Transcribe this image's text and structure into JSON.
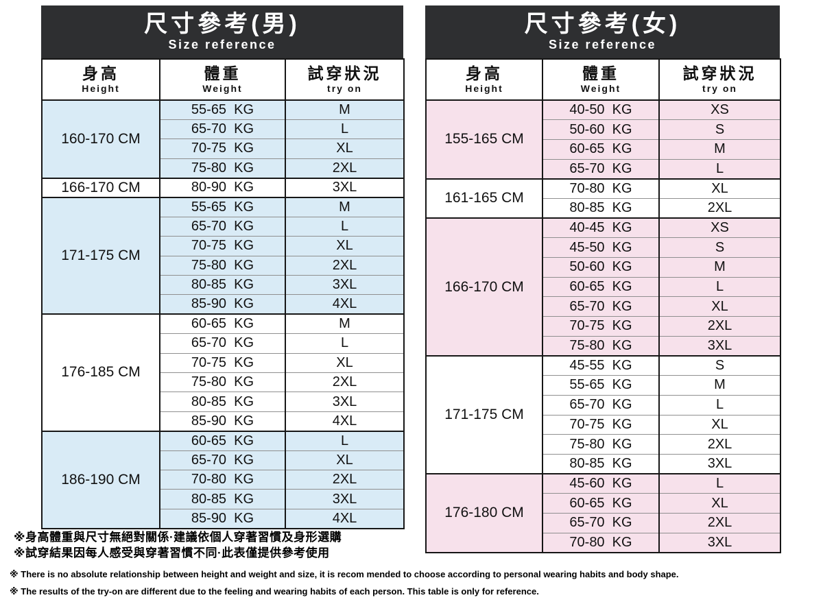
{
  "colors": {
    "title_bar_bg": "#2e2f31",
    "title_text": "#ffffff",
    "men_group_tint": "#d9ebf6",
    "women_group_tint": "#f7e1eb",
    "border_dark": "#161616",
    "inner_line": "#8f8f8f",
    "body_text": "#111111"
  },
  "tables": [
    {
      "id": "men",
      "title": "尺寸參考(男)",
      "subtitle": "Size reference",
      "tint": "#d9ebf6",
      "columns": [
        {
          "zh": "身高",
          "en": "Height"
        },
        {
          "zh": "體重",
          "en": "Weight"
        },
        {
          "zh": "試穿狀況",
          "en": "try on"
        }
      ],
      "groups": [
        {
          "height": "160-170 CM",
          "tinted": true,
          "rows": [
            [
              "55-65  KG",
              "M"
            ],
            [
              "65-70  KG",
              "L"
            ],
            [
              "70-75  KG",
              "XL"
            ],
            [
              "75-80  KG",
              "2XL"
            ]
          ]
        },
        {
          "height": "166-170 CM",
          "tinted": false,
          "rows": [
            [
              "80-90  KG",
              "3XL"
            ]
          ]
        },
        {
          "height": "171-175 CM",
          "tinted": true,
          "rows": [
            [
              "55-65  KG",
              "M"
            ],
            [
              "65-70  KG",
              "L"
            ],
            [
              "70-75  KG",
              "XL"
            ],
            [
              "75-80  KG",
              "2XL"
            ],
            [
              "80-85  KG",
              "3XL"
            ],
            [
              "85-90  KG",
              "4XL"
            ]
          ]
        },
        {
          "height": "176-185 CM",
          "tinted": false,
          "rows": [
            [
              "60-65  KG",
              "M"
            ],
            [
              "65-70  KG",
              "L"
            ],
            [
              "70-75  KG",
              "XL"
            ],
            [
              "75-80  KG",
              "2XL"
            ],
            [
              "80-85  KG",
              "3XL"
            ],
            [
              "85-90  KG",
              "4XL"
            ]
          ]
        },
        {
          "height": "186-190 CM",
          "tinted": true,
          "rows": [
            [
              "60-65  KG",
              "L"
            ],
            [
              "65-70  KG",
              "XL"
            ],
            [
              "70-80  KG",
              "2XL"
            ],
            [
              "80-85  KG",
              "3XL"
            ],
            [
              "85-90  KG",
              "4XL"
            ]
          ]
        }
      ]
    },
    {
      "id": "women",
      "title": "尺寸參考(女)",
      "subtitle": "Size reference",
      "tint": "#f7e1eb",
      "columns": [
        {
          "zh": "身高",
          "en": "Height"
        },
        {
          "zh": "體重",
          "en": "Weight"
        },
        {
          "zh": "試穿狀況",
          "en": "try on"
        }
      ],
      "groups": [
        {
          "height": "155-165 CM",
          "tinted": true,
          "rows": [
            [
              "40-50  KG",
              "XS"
            ],
            [
              "50-60  KG",
              "S"
            ],
            [
              "60-65  KG",
              "M"
            ],
            [
              "65-70  KG",
              "L"
            ]
          ]
        },
        {
          "height": "161-165 CM",
          "tinted": false,
          "rows": [
            [
              "70-80  KG",
              "XL"
            ],
            [
              "80-85  KG",
              "2XL"
            ]
          ]
        },
        {
          "height": "166-170 CM",
          "tinted": true,
          "rows": [
            [
              "40-45  KG",
              "XS"
            ],
            [
              "45-50  KG",
              "S"
            ],
            [
              "50-60  KG",
              "M"
            ],
            [
              "60-65  KG",
              "L"
            ],
            [
              "65-70  KG",
              "XL"
            ],
            [
              "70-75  KG",
              "2XL"
            ],
            [
              "75-80  KG",
              "3XL"
            ]
          ]
        },
        {
          "height": "171-175 CM",
          "tinted": false,
          "rows": [
            [
              "45-55  KG",
              "S"
            ],
            [
              "55-65  KG",
              "M"
            ],
            [
              "65-70  KG",
              "L"
            ],
            [
              "70-75  KG",
              "XL"
            ],
            [
              "75-80  KG",
              "2XL"
            ],
            [
              "80-85  KG",
              "3XL"
            ]
          ]
        },
        {
          "height": "176-180 CM",
          "tinted": true,
          "rows": [
            [
              "45-60  KG",
              "L"
            ],
            [
              "60-65  KG",
              "XL"
            ],
            [
              "65-70  KG",
              "2XL"
            ],
            [
              "70-80  KG",
              "3XL"
            ]
          ]
        }
      ]
    }
  ],
  "notes_zh": [
    "※身高體重與尺寸無絕對關係·建議依個人穿著習慣及身形選購",
    "※試穿結果因每人感受與穿著習慣不同·此表僅提供參考使用"
  ],
  "notes_en": [
    "※ There is no absolute relationship between height and weight and size, it is recom mended to choose according to personal wearing habits and body shape.",
    "※ The results of the try-on are different due to the feeling and wearing habits of each person. This table is only for reference."
  ]
}
